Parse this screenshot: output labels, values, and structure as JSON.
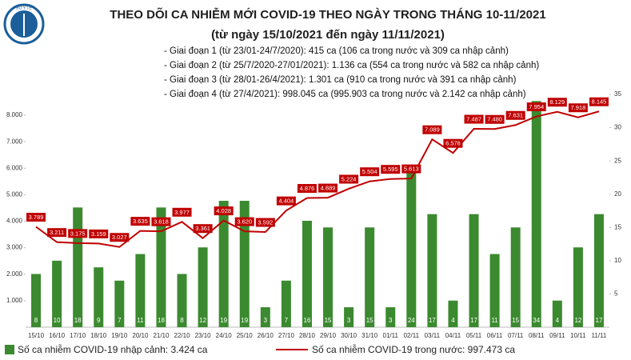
{
  "logo_text": "BỘ Y TẾ",
  "chart_data": {
    "type": "bar-line",
    "title": "THEO DÕI CA NHIỄM MỚI COVID-19 THEO NGÀY TRONG THÁNG 10-11/2021",
    "subtitle": "(từ ngày 15/10/2021 đến ngày 11/11/2021)",
    "annotations": [
      "- Giai đoạn 1 (từ 23/01-24/7/2020): 415 ca (106 ca trong nước và 309 ca nhập cảnh)",
      "- Giai đoạn 2 (từ 25/7/2020-27/01/2021): 1.136 ca (554 ca trong nước và 582 ca nhập cảnh)",
      "- Giai đoạn 3 (từ 28/01-26/4/2021): 1.301 ca (910 ca trong nước và 391 ca nhập cảnh)",
      "- Giai đoạn 4 (từ 27/4/2021): 998.045 ca (995.903 ca trong nước và 2.142 ca nhập cảnh)"
    ],
    "categories": [
      "15/10",
      "16/10",
      "17/10",
      "18/10",
      "19/10",
      "20/10",
      "21/10",
      "22/10",
      "23/10",
      "24/10",
      "25/10",
      "26/10",
      "27/10",
      "28/10",
      "29/10",
      "30/10",
      "31/10",
      "01/11",
      "02/11",
      "03/11",
      "04/11",
      "05/11",
      "06/11",
      "07/11",
      "08/11",
      "09/11",
      "10/11",
      "11/11"
    ],
    "series": [
      {
        "name": "Số ca nhiễm COVID-19 nhập cảnh: 3.424 ca",
        "type": "bar",
        "axis": "y2",
        "color": "#3b8a2f",
        "values": [
          8,
          10,
          18,
          9,
          7,
          11,
          18,
          8,
          12,
          19,
          19,
          3,
          7,
          16,
          15,
          3,
          15,
          3,
          24,
          17,
          4,
          17,
          11,
          15,
          34,
          4,
          12,
          17
        ]
      },
      {
        "name": "Số ca nhiễm COVID-19 trong nước: 997.473 ca",
        "type": "line",
        "axis": "y",
        "color": "#c00000",
        "values": [
          3789,
          3211,
          3175,
          3159,
          3027,
          3635,
          3618,
          3977,
          3361,
          4028,
          3620,
          3592,
          4404,
          4876,
          4889,
          5224,
          5504,
          5595,
          5613,
          7089,
          6576,
          7487,
          7480,
          7631,
          7954,
          8129,
          7918,
          8145
        ],
        "value_labels": [
          "3.789",
          "3.211",
          "3.175",
          "3.159",
          "3.027",
          "3.635",
          "3.618",
          "3.977",
          "3.361",
          "4.028",
          "3.620",
          "3.592",
          "4.404",
          "4.876",
          "4.889",
          "5.224",
          "5.504",
          "5.595",
          "5.613",
          "7.089",
          "6.576",
          "7.487",
          "7.480",
          "7.631",
          "7.954",
          "8.129",
          "7.918",
          "8.145"
        ]
      }
    ],
    "ylim": [
      0,
      8786
    ],
    "yticks": [
      {
        "value": 1000,
        "label": "1.000"
      },
      {
        "value": 2000,
        "label": "2.000"
      },
      {
        "value": 3000,
        "label": "3.000"
      },
      {
        "value": 4000,
        "label": "4.000"
      },
      {
        "value": 5000,
        "label": "5.000"
      },
      {
        "value": 6000,
        "label": "6.000"
      },
      {
        "value": 7000,
        "label": "7.000"
      },
      {
        "value": 8000,
        "label": "8.000"
      }
    ],
    "y2lim": [
      0,
      35
    ],
    "y2ticks": [
      5,
      10,
      15,
      20,
      25,
      30,
      35
    ]
  }
}
